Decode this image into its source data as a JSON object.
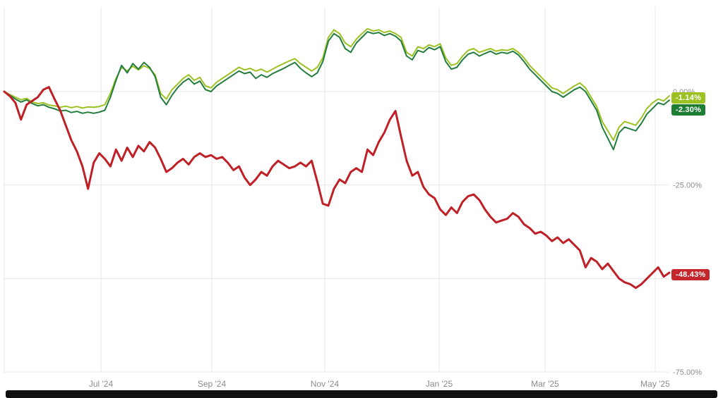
{
  "colors": {
    "background": "#ffffff",
    "grid": "#e7e7e7",
    "axis_text": "#8c8c8c",
    "bottom_bar": "#111111"
  },
  "chart_data": {
    "type": "line",
    "title": "",
    "grid": true,
    "legend": "right-edge-badges",
    "x_count": 120,
    "y_domain": [
      -78,
      22
    ],
    "y_gridlines": [
      0,
      -25,
      -50,
      -75
    ],
    "y_axis_labels": [
      {
        "value": 0,
        "label": "0.00%"
      },
      {
        "value": -25,
        "label": "-25.00%"
      },
      {
        "value": -75,
        "label": "-75.00%"
      }
    ],
    "x_ticks": [
      {
        "label": "Jul '24",
        "pos": 0.1454
      },
      {
        "label": "Sep '24",
        "pos": 0.3121
      },
      {
        "label": "Nov '24",
        "pos": 0.4819
      },
      {
        "label": "Jan '25",
        "pos": 0.6539
      },
      {
        "label": "Mar '25",
        "pos": 0.8131
      },
      {
        "label": "May '25",
        "pos": 0.9788
      }
    ],
    "series": [
      {
        "name": "light-green-series",
        "color": "#9cc222",
        "badge_color": "#9cc222",
        "final_label": "-1.14%",
        "final_value": -1.14,
        "values": [
          0,
          -0.8,
          -1.5,
          -2.2,
          -1.8,
          -2.8,
          -3.2,
          -3.0,
          -3.6,
          -3.8,
          -4.2,
          -3.9,
          -4.3,
          -4.0,
          -4.4,
          -4.1,
          -4.2,
          -4.0,
          -3.5,
          -0.5,
          3.5,
          6.5,
          5.5,
          6.8,
          5.8,
          6.9,
          6.2,
          4.5,
          -0.5,
          -2.0,
          0.5,
          2.0,
          3.5,
          4.5,
          3.0,
          3.8,
          1.5,
          1.0,
          2.5,
          3.5,
          4.5,
          5.5,
          6.5,
          5.8,
          6.2,
          5.5,
          6.0,
          5.2,
          6.0,
          6.8,
          7.5,
          8.2,
          8.8,
          7.5,
          6.5,
          5.5,
          6.5,
          9.0,
          14.5,
          16.5,
          15.5,
          13.0,
          12.0,
          14.0,
          15.5,
          16.8,
          16.2,
          16.5,
          15.8,
          16.2,
          15.5,
          14.5,
          10.5,
          9.5,
          12.0,
          11.5,
          12.5,
          12.0,
          12.8,
          9.0,
          7.0,
          7.5,
          9.5,
          11.0,
          11.5,
          10.5,
          11.0,
          11.5,
          10.8,
          11.2,
          11.0,
          11.5,
          10.5,
          9.0,
          7.0,
          5.5,
          4.0,
          2.5,
          1.0,
          0.5,
          -0.5,
          0.5,
          1.5,
          2.3,
          1.0,
          -1.5,
          -4.0,
          -8.0,
          -10.5,
          -13.0,
          -9.5,
          -8.0,
          -8.5,
          -9.0,
          -7.0,
          -4.5,
          -3.0,
          -2.0,
          -2.5,
          -1.14
        ]
      },
      {
        "name": "dark-green-series",
        "color": "#237d3f",
        "badge_color": "#1e7e34",
        "final_label": "-2.30%",
        "final_value": -2.3,
        "values": [
          0,
          -1.0,
          -2.0,
          -2.8,
          -2.2,
          -3.2,
          -3.8,
          -3.5,
          -4.2,
          -4.6,
          -5.2,
          -5.0,
          -5.6,
          -5.3,
          -5.8,
          -5.5,
          -5.8,
          -5.5,
          -5.0,
          -1.5,
          3.0,
          7.0,
          5.0,
          7.5,
          6.0,
          7.8,
          6.5,
          4.0,
          -1.5,
          -3.5,
          -1.0,
          1.0,
          2.5,
          3.5,
          2.0,
          2.8,
          0.5,
          0.0,
          1.5,
          2.5,
          3.5,
          4.5,
          5.5,
          4.8,
          5.2,
          3.5,
          4.5,
          3.8,
          4.8,
          5.5,
          6.2,
          7.0,
          7.8,
          6.2,
          5.0,
          4.0,
          5.0,
          8.0,
          13.5,
          15.5,
          14.5,
          11.5,
          10.5,
          13.0,
          14.5,
          16.0,
          15.5,
          15.8,
          15.0,
          15.5,
          14.8,
          13.5,
          9.5,
          8.5,
          11.0,
          10.5,
          11.8,
          11.2,
          12.0,
          8.0,
          6.0,
          6.5,
          8.5,
          10.0,
          10.5,
          9.5,
          10.2,
          10.8,
          10.0,
          10.5,
          10.2,
          10.8,
          9.8,
          8.0,
          6.0,
          4.5,
          3.0,
          1.5,
          0.0,
          -0.5,
          -1.5,
          -0.5,
          0.5,
          1.2,
          0.0,
          -2.5,
          -5.0,
          -9.5,
          -12.5,
          -15.5,
          -11.0,
          -9.5,
          -10.0,
          -10.5,
          -8.5,
          -6.0,
          -4.5,
          -3.0,
          -3.5,
          -2.3
        ]
      },
      {
        "name": "red-series",
        "color": "#bf2026",
        "badge_color": "#c3272b",
        "final_label": "-48.43%",
        "final_value": -48.43,
        "values": [
          0,
          -1.2,
          -3.0,
          -7.5,
          -3.5,
          -2.5,
          -1.5,
          0.5,
          1.2,
          -2.0,
          -5.0,
          -9.0,
          -13.0,
          -16.0,
          -20.0,
          -26.0,
          -19.0,
          -16.5,
          -18.0,
          -20.0,
          -15.5,
          -18.5,
          -15.0,
          -17.5,
          -14.5,
          -16.0,
          -13.5,
          -15.0,
          -18.0,
          -21.5,
          -20.5,
          -19.0,
          -18.0,
          -19.5,
          -17.5,
          -16.5,
          -17.5,
          -17.0,
          -18.0,
          -17.5,
          -19.0,
          -21.0,
          -20.0,
          -23.0,
          -25.0,
          -23.5,
          -21.5,
          -22.5,
          -20.0,
          -18.5,
          -19.5,
          -20.5,
          -20.0,
          -19.0,
          -20.0,
          -18.5,
          -24.0,
          -30.0,
          -30.5,
          -26.0,
          -23.5,
          -24.5,
          -21.5,
          -20.5,
          -21.5,
          -15.5,
          -17.0,
          -13.5,
          -11.0,
          -7.5,
          -5.2,
          -12.0,
          -18.5,
          -22.5,
          -21.5,
          -25.5,
          -27.5,
          -28.5,
          -31.5,
          -33.0,
          -31.0,
          -32.5,
          -29.5,
          -28.0,
          -27.5,
          -29.0,
          -31.5,
          -33.5,
          -35.0,
          -34.5,
          -34.0,
          -32.5,
          -33.5,
          -35.5,
          -36.5,
          -38.0,
          -37.5,
          -38.5,
          -40.0,
          -39.0,
          -40.5,
          -39.5,
          -41.0,
          -42.5,
          -47.0,
          -44.5,
          -45.5,
          -47.5,
          -46.0,
          -48.0,
          -50.0,
          -51.0,
          -51.5,
          -52.5,
          -51.5,
          -50.0,
          -48.5,
          -47.0,
          -49.5,
          -48.43
        ]
      }
    ]
  }
}
